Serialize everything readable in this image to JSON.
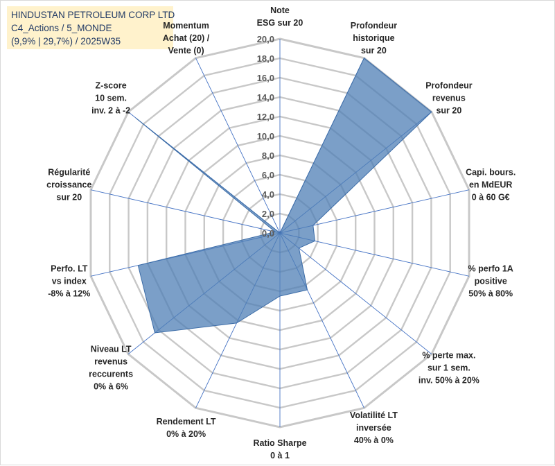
{
  "title_box": {
    "line1": "HINDUSTAN PETROLEUM CORP LTD",
    "line2": "C4_Actions / 5_MONDE",
    "line3": "(9,9% | 29,7%) / 2025W35"
  },
  "colors": {
    "fill": "#4f7fb6",
    "stroke": "#3d6da8",
    "grid": "#c8c8c8",
    "spoke": "#4472c4",
    "title_bg": "#fff2cc",
    "title_text": "#1f3864"
  },
  "chart_data": {
    "type": "radar",
    "r_min": 0,
    "r_max": 20,
    "tick_step": 2,
    "tick_labels": [
      "0,0",
      "2,0",
      "4,0",
      "6,0",
      "8,0",
      "10,0",
      "12,0",
      "14,0",
      "16,0",
      "18,0",
      "20,0"
    ],
    "axes": [
      {
        "label": [
          "Note",
          "ESG sur 20"
        ],
        "value": 0
      },
      {
        "label": [
          "Profondeur",
          "historique",
          "sur 20"
        ],
        "value": 20
      },
      {
        "label": [
          "Profondeur",
          "revenus",
          "sur 20"
        ],
        "value": 20
      },
      {
        "label": [
          "Capi. bours.",
          "en MdEUR",
          "0 à 60 G€"
        ],
        "value": 3.5
      },
      {
        "label": [
          "% perfo 1A",
          "positive",
          "50% à 80%"
        ],
        "value": 3.7
      },
      {
        "label": [
          "% perte max.",
          "sur 1 sem.",
          "inv. 50% à 20%"
        ],
        "value": 2.5
      },
      {
        "label": [
          "Volatilité LT",
          "inversée",
          "40% à 0%"
        ],
        "value": 6.5
      },
      {
        "label": [
          "Ratio Sharpe",
          "0 à 1"
        ],
        "value": 6.5
      },
      {
        "label": [
          "Rendement LT",
          "0% à 20%"
        ],
        "value": 10.3
      },
      {
        "label": [
          "Niveau LT",
          "revenus",
          "reccurents",
          "0% à 6%"
        ],
        "value": 16.5
      },
      {
        "label": [
          "Perfo. LT",
          "vs index",
          "-8% à 12%"
        ],
        "value": 15.0
      },
      {
        "label": [
          "Régularité",
          "croissance",
          "sur 20"
        ],
        "value": 0.5
      },
      {
        "label": [
          "Z-score",
          "10 sem.",
          "inv. 2 à -2"
        ],
        "value": 19.0
      },
      {
        "label": [
          "Momentum",
          "Achat (20) /",
          "Vente (0)"
        ],
        "value": 0
      }
    ]
  }
}
